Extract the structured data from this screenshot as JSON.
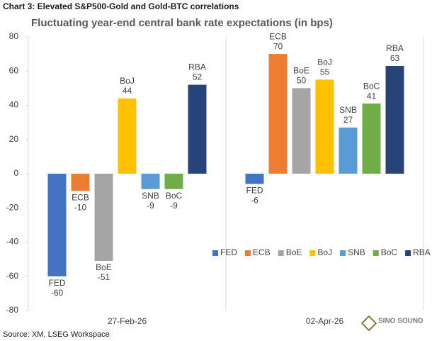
{
  "header": "Chart 3: Elevated S&P500-Gold and Gold-BTC correlations",
  "chart_data": {
    "type": "bar",
    "title": "Fluctuating year-end central bank rate expectations (in bps)",
    "categories": [
      "27-Feb-26",
      "02-Apr-26"
    ],
    "series": [
      {
        "name": "FED",
        "color": "#4472c4",
        "values": [
          -60,
          -6
        ]
      },
      {
        "name": "ECB",
        "color": "#ed7d31",
        "values": [
          -10,
          70
        ]
      },
      {
        "name": "BoE",
        "color": "#a5a5a5",
        "values": [
          -51,
          50
        ]
      },
      {
        "name": "BoJ",
        "color": "#ffc000",
        "values": [
          44,
          55
        ]
      },
      {
        "name": "SNB",
        "color": "#5b9bd5",
        "values": [
          -9,
          27
        ]
      },
      {
        "name": "BoC",
        "color": "#70ad47",
        "values": [
          -9,
          41
        ]
      },
      {
        "name": "RBA",
        "color": "#264478",
        "values": [
          52,
          63
        ]
      }
    ],
    "ylim": [
      -80,
      80
    ],
    "yticks": [
      -80,
      -60,
      -40,
      -20,
      0,
      20,
      40,
      60,
      80
    ],
    "legend": "bottom-right"
  },
  "source": "Source: XM, LSEG Workspace",
  "watermark": "SINO SOUND"
}
